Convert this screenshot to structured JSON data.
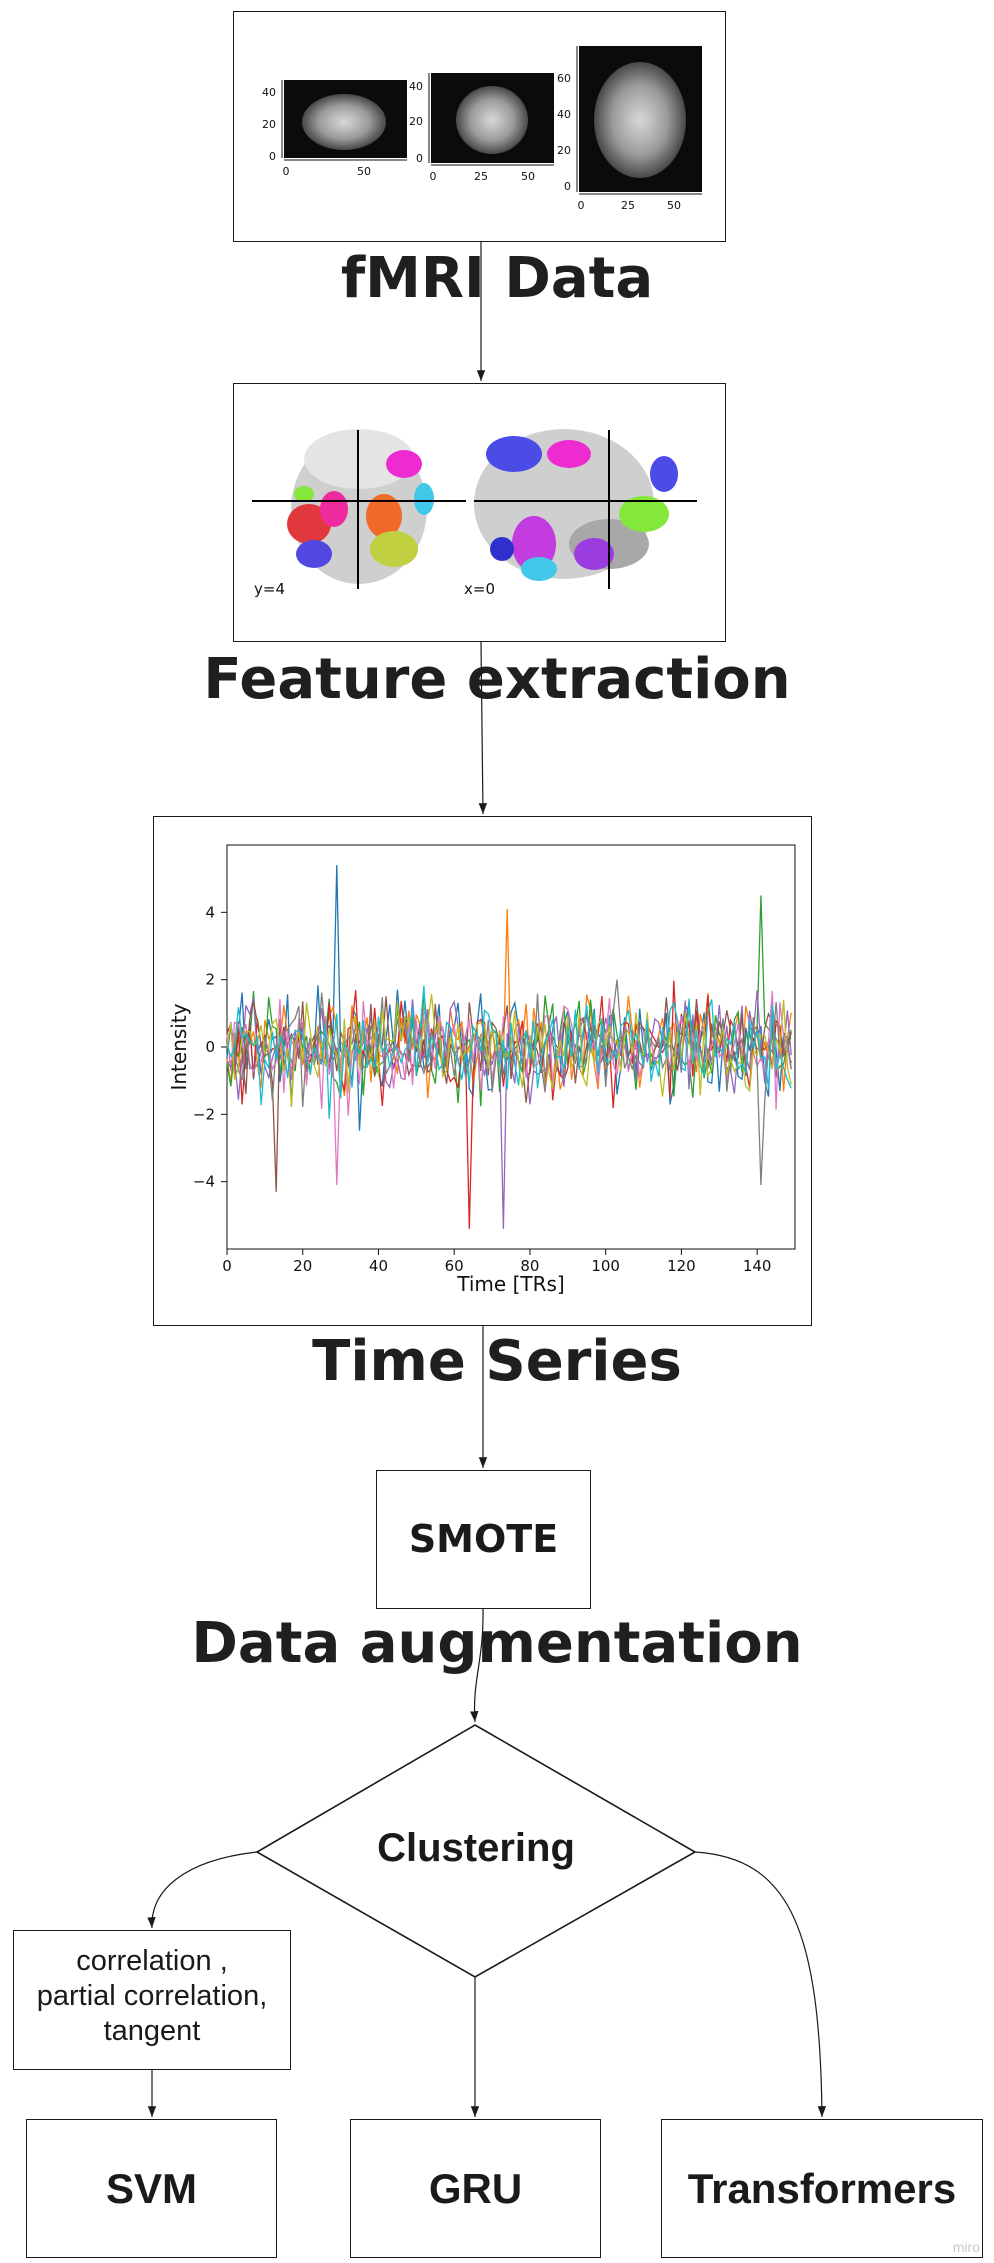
{
  "nodes": {
    "fmri": {
      "label": "fMRI Data",
      "tick_labels": [
        "40",
        "20",
        "0",
        "0",
        "50",
        "40",
        "20",
        "0",
        "0",
        "25",
        "50",
        "60",
        "40",
        "20",
        "0",
        "0",
        "25",
        "50"
      ]
    },
    "feature": {
      "label": "Feature extraction",
      "coord_y": "y=4",
      "coord_x": "x=0"
    },
    "timeseries": {
      "label": "Time Series"
    },
    "smote": {
      "text": "SMOTE",
      "label": "Data augmentation"
    },
    "clustering": {
      "text": "Clustering"
    },
    "correlation": {
      "line1": "correlation ,",
      "line2": "partial correlation,",
      "line3": "tangent"
    },
    "svm": {
      "text": "SVM"
    },
    "gru": {
      "text": "GRU"
    },
    "transformers": {
      "text": "Transformers"
    }
  },
  "watermark": "miro",
  "chart_data": {
    "type": "line",
    "xlabel": "Time [TRs]",
    "ylabel": "Intensity",
    "xlim": [
      0,
      150
    ],
    "ylim": [
      -6,
      6
    ],
    "xticks": [
      0,
      20,
      40,
      60,
      80,
      100,
      120,
      140
    ],
    "yticks": [
      4,
      2,
      0,
      -2,
      -4
    ],
    "n_timepoints": 150,
    "series_colors": [
      "#1f77b4",
      "#ff7f0e",
      "#2ca02c",
      "#d62728",
      "#9467bd",
      "#8c564b",
      "#e377c2",
      "#7f7f7f",
      "#bcbd22",
      "#17becf"
    ],
    "peaks": [
      {
        "x": 29,
        "y": 5.4
      },
      {
        "x": 74,
        "y": 4.1
      },
      {
        "x": 141,
        "y": 4.5
      },
      {
        "x": 64,
        "y": -5.4
      },
      {
        "x": 73,
        "y": -5.4
      },
      {
        "x": 13,
        "y": -4.3
      },
      {
        "x": 29,
        "y": -4.1
      },
      {
        "x": 141,
        "y": -4.1
      }
    ]
  }
}
